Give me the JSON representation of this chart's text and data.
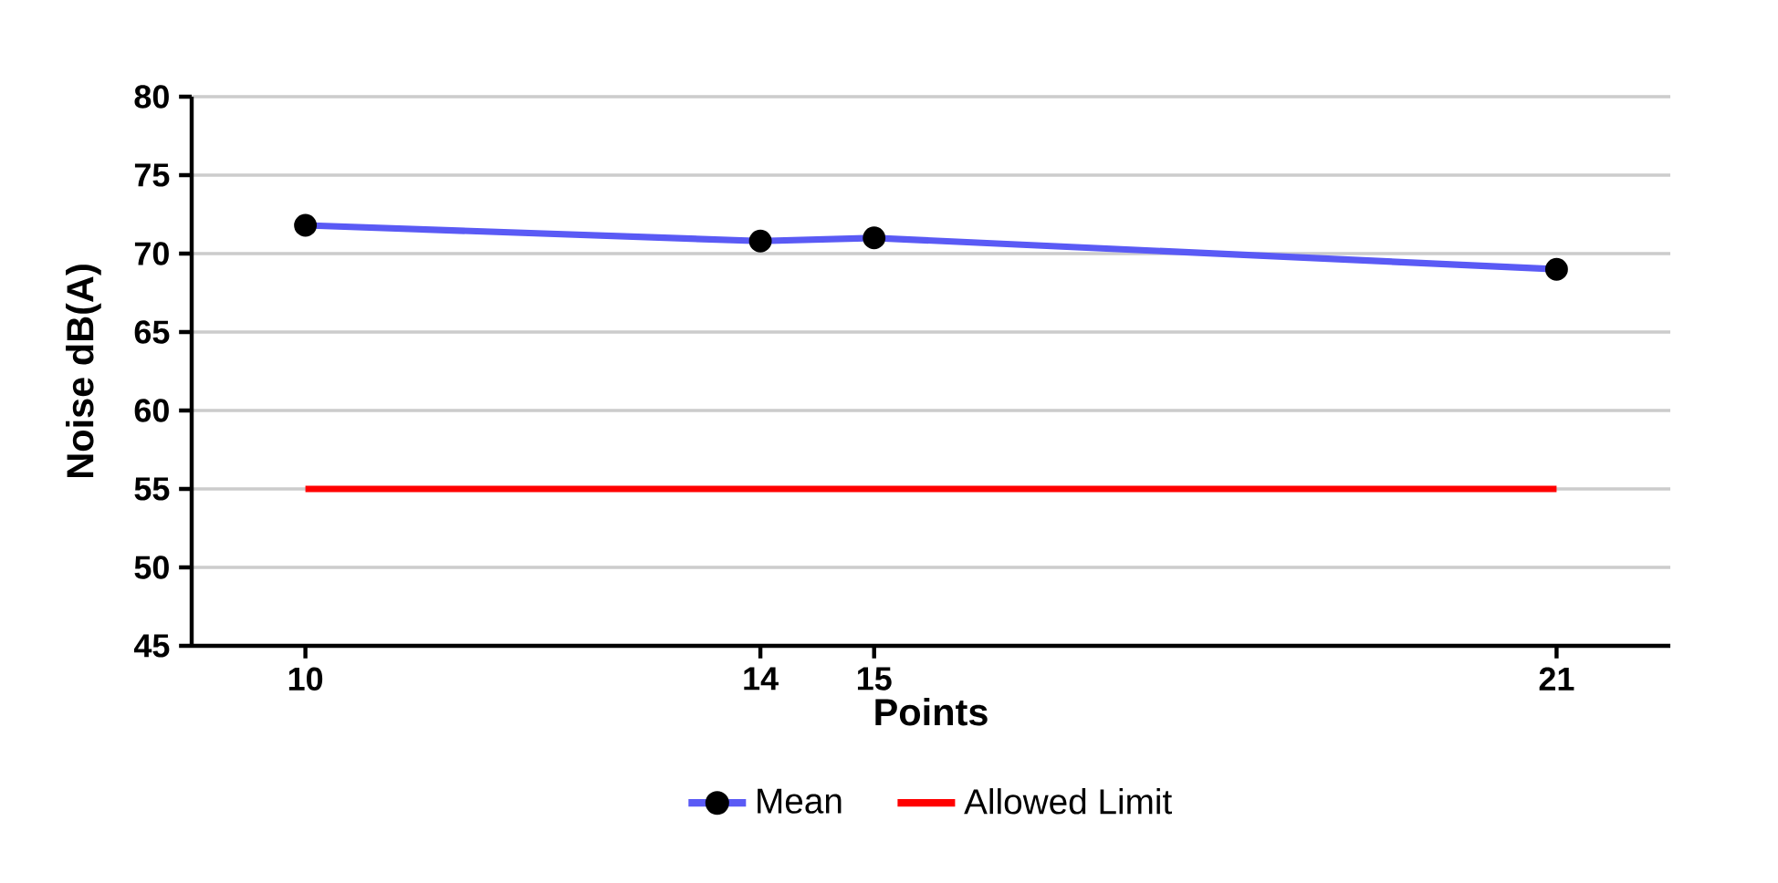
{
  "chart_data": {
    "type": "line",
    "xlabel": "Points",
    "ylabel": "Noise dB(A)",
    "x": [
      10,
      14,
      15,
      21
    ],
    "series": [
      {
        "name": "Mean",
        "color": "#5a5af5",
        "values": [
          71.8,
          70.8,
          71.0,
          69.0
        ],
        "marker": "circle"
      },
      {
        "name": "Allowed Limit",
        "color": "#ff0000",
        "values": [
          55,
          55,
          55,
          55
        ],
        "marker": "none"
      }
    ],
    "xlim": [
      9,
      22
    ],
    "xticks": [
      10,
      14,
      15,
      21
    ],
    "ylim": [
      45,
      80
    ],
    "yticks": [
      45,
      50,
      55,
      60,
      65,
      70,
      75,
      80
    ],
    "grid": "y",
    "legend": "bottom",
    "line_style": "solid"
  }
}
